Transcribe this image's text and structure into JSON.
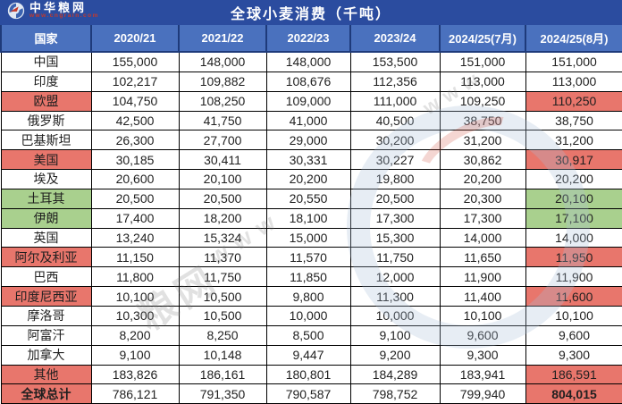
{
  "logo": {
    "name": "中华粮网",
    "url": "www.cngrain.com"
  },
  "colors": {
    "title_bar_navy": "#2B4C9F",
    "header_blue": "#4A71BE",
    "highlight_red": "#E8766C",
    "highlight_green": "#A9D08E"
  },
  "watermark": {
    "brand_text": "粮网",
    "url_text": "www.cngrain.com",
    "url_text_short": "www"
  },
  "chart_data": {
    "type": "table",
    "title": "全球小麦消费（千吨）",
    "columns": [
      "国家",
      "2020/21",
      "2021/22",
      "2022/23",
      "2023/24",
      "2024/25(7月)",
      "2024/25(8月)"
    ],
    "rows": [
      {
        "country": "中国",
        "values": [
          "155,000",
          "148,000",
          "148,000",
          "153,500",
          "151,000",
          "151,000"
        ],
        "country_hl": null,
        "aug_hl": null,
        "bold": false
      },
      {
        "country": "印度",
        "values": [
          "102,217",
          "109,882",
          "108,676",
          "112,356",
          "113,000",
          "113,000"
        ],
        "country_hl": null,
        "aug_hl": null,
        "bold": false
      },
      {
        "country": "欧盟",
        "values": [
          "104,750",
          "108,250",
          "109,000",
          "111,000",
          "109,250",
          "110,250"
        ],
        "country_hl": "red",
        "aug_hl": "red",
        "bold": false
      },
      {
        "country": "俄罗斯",
        "values": [
          "42,500",
          "41,750",
          "41,000",
          "40,500",
          "38,750",
          "38,750"
        ],
        "country_hl": null,
        "aug_hl": null,
        "bold": false
      },
      {
        "country": "巴基斯坦",
        "values": [
          "26,300",
          "27,700",
          "29,000",
          "30,200",
          "31,200",
          "31,200"
        ],
        "country_hl": null,
        "aug_hl": null,
        "bold": false
      },
      {
        "country": "美国",
        "values": [
          "30,185",
          "30,411",
          "30,331",
          "30,227",
          "30,862",
          "30,917"
        ],
        "country_hl": "red",
        "aug_hl": "red",
        "bold": false
      },
      {
        "country": "埃及",
        "values": [
          "20,600",
          "20,100",
          "20,200",
          "19,800",
          "20,200",
          "20,200"
        ],
        "country_hl": null,
        "aug_hl": null,
        "bold": false
      },
      {
        "country": "土耳其",
        "values": [
          "20,500",
          "20,500",
          "20,550",
          "20,500",
          "20,300",
          "20,100"
        ],
        "country_hl": "green",
        "aug_hl": "green",
        "bold": false
      },
      {
        "country": "伊朗",
        "values": [
          "17,400",
          "18,200",
          "18,100",
          "17,300",
          "17,300",
          "17,100"
        ],
        "country_hl": "green",
        "aug_hl": "green",
        "bold": false
      },
      {
        "country": "英国",
        "values": [
          "13,240",
          "15,324",
          "15,000",
          "15,300",
          "14,000",
          "14,000"
        ],
        "country_hl": null,
        "aug_hl": null,
        "bold": false
      },
      {
        "country": "阿尔及利亚",
        "values": [
          "11,150",
          "11,370",
          "11,570",
          "11,750",
          "11,650",
          "11,950"
        ],
        "country_hl": "red",
        "aug_hl": "red",
        "bold": false
      },
      {
        "country": "巴西",
        "values": [
          "11,800",
          "11,750",
          "11,850",
          "12,000",
          "11,900",
          "11,900"
        ],
        "country_hl": null,
        "aug_hl": null,
        "bold": false
      },
      {
        "country": "印度尼西亚",
        "values": [
          "10,100",
          "10,500",
          "9,800",
          "11,300",
          "11,400",
          "11,600"
        ],
        "country_hl": "red",
        "aug_hl": "red",
        "bold": false
      },
      {
        "country": "摩洛哥",
        "values": [
          "10,300",
          "10,500",
          "10,000",
          "10,000",
          "10,100",
          "10,100"
        ],
        "country_hl": null,
        "aug_hl": null,
        "bold": false
      },
      {
        "country": "阿富汗",
        "values": [
          "8,200",
          "8,250",
          "8,500",
          "9,100",
          "9,600",
          "9,600"
        ],
        "country_hl": null,
        "aug_hl": null,
        "bold": false
      },
      {
        "country": "加拿大",
        "values": [
          "9,100",
          "10,148",
          "9,447",
          "9,200",
          "9,300",
          "9,300"
        ],
        "country_hl": null,
        "aug_hl": null,
        "bold": false
      },
      {
        "country": "其他",
        "values": [
          "183,826",
          "186,161",
          "180,801",
          "184,289",
          "183,941",
          "186,591"
        ],
        "country_hl": "red",
        "aug_hl": "red",
        "bold": false
      },
      {
        "country": "全球总计",
        "values": [
          "786,121",
          "791,350",
          "790,587",
          "798,752",
          "799,940",
          "804,015"
        ],
        "country_hl": "red",
        "aug_hl": "red",
        "bold": true
      }
    ]
  }
}
